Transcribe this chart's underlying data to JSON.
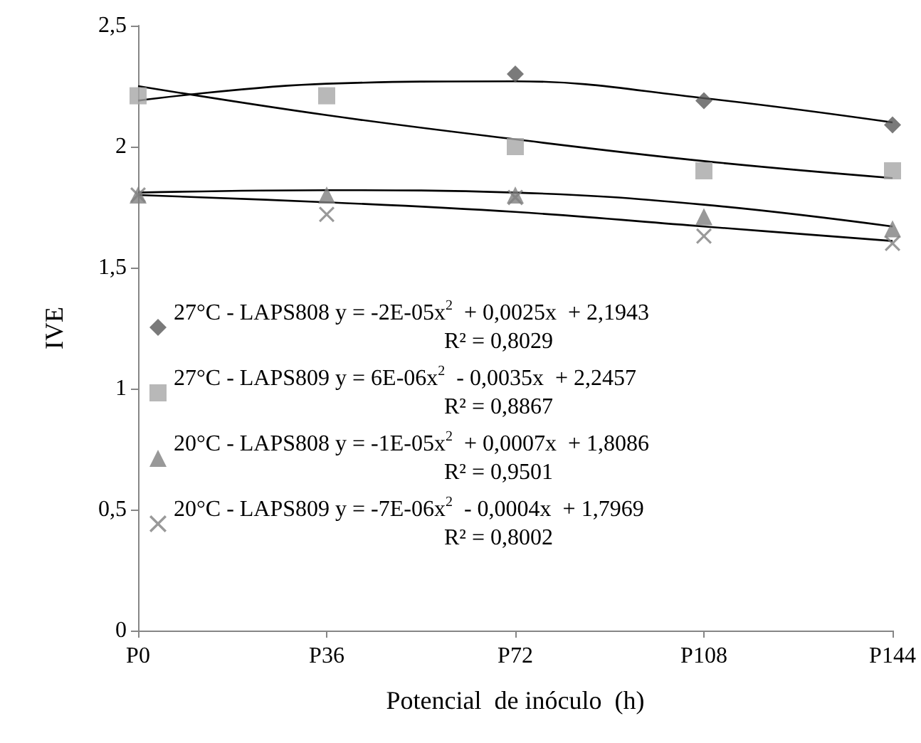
{
  "chart_data": {
    "type": "scatter",
    "xlabel": "Potencial  de inóculo  (h)",
    "ylabel": "IVE",
    "categories": [
      "P0",
      "P36",
      "P72",
      "P108",
      "P144"
    ],
    "ylim": [
      0,
      2.5
    ],
    "yticks": [
      {
        "value": 0,
        "label": "0"
      },
      {
        "value": 0.5,
        "label": "0,5"
      },
      {
        "value": 1,
        "label": "1"
      },
      {
        "value": 1.5,
        "label": "1,5"
      },
      {
        "value": 2,
        "label": "2"
      },
      {
        "value": 2.5,
        "label": "2,5"
      }
    ],
    "grid": false,
    "legend": "bottom left",
    "series": [
      {
        "name": "27°C - LAPS808",
        "color": "#595959",
        "marker": "diamond",
        "values": [
          null,
          null,
          2.3,
          2.19,
          2.09
        ]
      },
      {
        "name": "27°C - LAPS809",
        "color": "#a6a6a6",
        "marker": "square",
        "values": [
          2.21,
          2.21,
          2.0,
          1.9,
          1.9
        ]
      },
      {
        "name": "20°C - LAPS808",
        "color": "#7f7f7f",
        "marker": "triangle",
        "values": [
          1.8,
          1.8,
          1.8,
          1.71,
          1.66
        ]
      },
      {
        "name": "20°C - LAPS809",
        "color": "#7f7f7f",
        "marker": "cross",
        "values": [
          1.8,
          1.72,
          1.79,
          1.63,
          1.6
        ]
      },
      {
        "type": "line",
        "color": "#000000",
        "marker": "none",
        "values": [
          2.19,
          2.26,
          2.27,
          2.2,
          2.1
        ]
      },
      {
        "type": "line",
        "color": "#000000",
        "marker": "none",
        "values": [
          2.25,
          2.13,
          2.03,
          1.94,
          1.87
        ]
      },
      {
        "type": "line",
        "color": "#000000",
        "marker": "none",
        "values": [
          1.81,
          1.82,
          1.81,
          1.76,
          1.67
        ]
      },
      {
        "type": "line",
        "color": "#000000",
        "marker": "none",
        "values": [
          1.8,
          1.77,
          1.73,
          1.67,
          1.61
        ]
      }
    ],
    "annotations": [
      "y = -2E-05x$^{2}$  + 0,0025x  + 2,1943",
      "R² = 0,8029",
      "y = 6E-06x$^{2}$  - 0,0035x  + 2,2457",
      "R² = 0,8867",
      "y = -1E-05x$^{2}$  + 0,0007x  + 1,8086",
      "R² = 0,9501",
      "y = -7E-06x$^{2}$  - 0,0004x  + 1,7969",
      "R² = 0,8002"
    ]
  }
}
